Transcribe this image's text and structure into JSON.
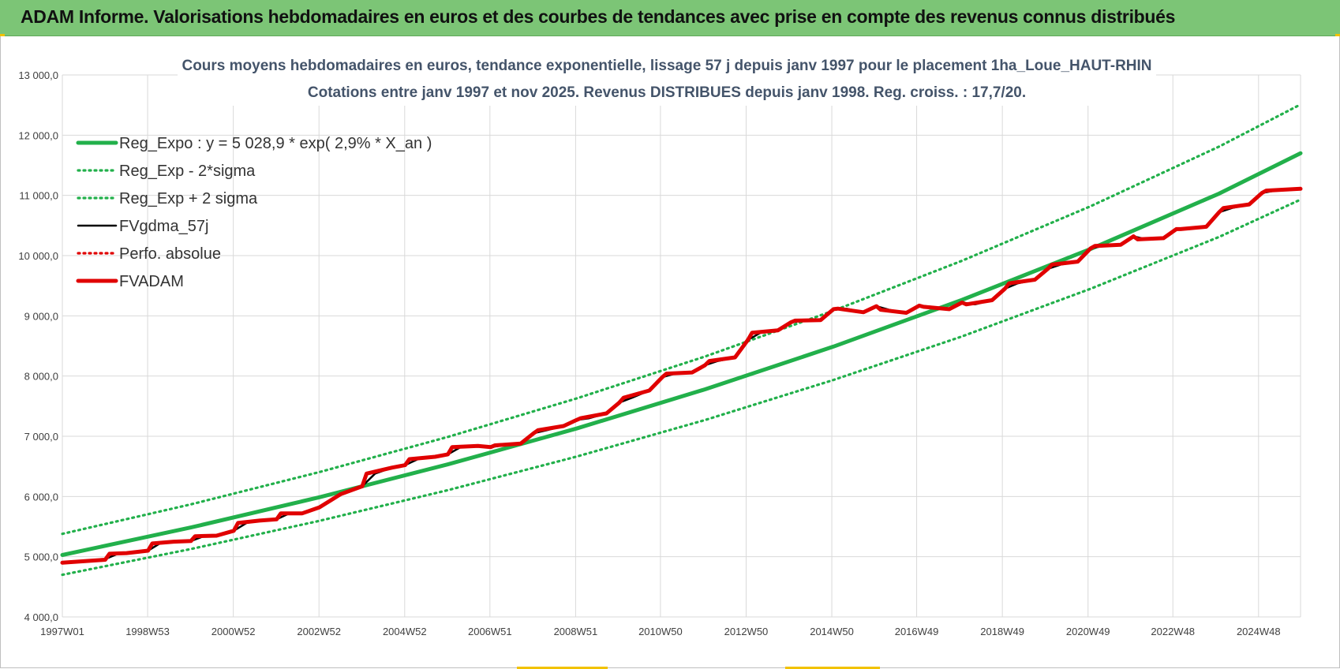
{
  "banner": {
    "title": "ADAM Informe. Valorisations hebdomadaires en euros et des courbes de tendances avec prise en compte des revenus connus distribués"
  },
  "colors": {
    "banner_bg": "#7cc576",
    "reg_expo": "#22b04b",
    "band": "#22b04b",
    "fvgdma": "#000000",
    "perfo": "#e00000",
    "fvadam": "#e00000",
    "grid": "#d9d9d9"
  },
  "chart_data": {
    "type": "line",
    "title_lines": [
      "Cours moyens hebdomadaires en euros, tendance exponentielle, lissage 57 j depuis janv 1997  pour le placement 1ha_Loue_HAUT-RHIN",
      "Cotations entre janv 1997 et nov 2025. Revenus  DISTRIBUES depuis janv 1998.  Reg. croiss. : 17,7/20."
    ],
    "x_range": [
      1997.0,
      2025.9
    ],
    "x_ticks": [
      {
        "x": 1997.0,
        "label": "1997W01"
      },
      {
        "x": 1998.99,
        "label": "1998W53"
      },
      {
        "x": 2000.99,
        "label": "2000W52"
      },
      {
        "x": 2002.99,
        "label": "2002W52"
      },
      {
        "x": 2004.99,
        "label": "2004W52"
      },
      {
        "x": 2006.98,
        "label": "2006W51"
      },
      {
        "x": 2008.98,
        "label": "2008W51"
      },
      {
        "x": 2010.96,
        "label": "2010W50"
      },
      {
        "x": 2012.96,
        "label": "2012W50"
      },
      {
        "x": 2014.96,
        "label": "2014W50"
      },
      {
        "x": 2016.94,
        "label": "2016W49"
      },
      {
        "x": 2018.94,
        "label": "2018W49"
      },
      {
        "x": 2020.94,
        "label": "2020W49"
      },
      {
        "x": 2022.92,
        "label": "2022W48"
      },
      {
        "x": 2024.92,
        "label": "2024W48"
      }
    ],
    "y_range": [
      4000,
      13000
    ],
    "y_ticks": [
      {
        "y": 4000,
        "label": "4 000,0"
      },
      {
        "y": 5000,
        "label": "5 000,0"
      },
      {
        "y": 6000,
        "label": "6 000,0"
      },
      {
        "y": 7000,
        "label": "7 000,0"
      },
      {
        "y": 8000,
        "label": "8 000,0"
      },
      {
        "y": 9000,
        "label": "9 000,0"
      },
      {
        "y": 10000,
        "label": "10 000,0"
      },
      {
        "y": 11000,
        "label": "11 000,0"
      },
      {
        "y": 12000,
        "label": "12 000,0"
      },
      {
        "y": 13000,
        "label": "13 000,0"
      }
    ],
    "grid": true,
    "legend_position": "top-left",
    "series": [
      {
        "name": "Reg_Expo : y = 5 028,9 * exp( 2,9% *  X_an )",
        "style": "solid-thick",
        "color": "#22b04b",
        "x": [
          1997.0,
          2000.0,
          2003.0,
          2006.0,
          2009.0,
          2012.0,
          2015.0,
          2018.0,
          2021.0,
          2024.0,
          2025.9
        ],
        "y": [
          5028.9,
          5486,
          5987,
          6533,
          7128,
          7780,
          8490,
          9265,
          10110,
          11030,
          11700
        ]
      },
      {
        "name": "Reg_Exp - 2*sigma",
        "style": "dotted",
        "color": "#22b04b",
        "x": [
          1997.0,
          2000.0,
          2003.0,
          2006.0,
          2009.0,
          2012.0,
          2015.0,
          2018.0,
          2021.0,
          2024.0,
          2025.9
        ],
        "y": [
          4700,
          5128,
          5595,
          6105,
          6662,
          7270,
          7935,
          8658,
          9450,
          10310,
          10930
        ]
      },
      {
        "name": "Reg_Exp + 2 sigma",
        "style": "dotted",
        "color": "#22b04b",
        "x": [
          1997.0,
          2000.0,
          2003.0,
          2006.0,
          2009.0,
          2012.0,
          2015.0,
          2018.0,
          2021.0,
          2024.0,
          2025.9
        ],
        "y": [
          5380,
          5870,
          6405,
          6990,
          7628,
          8325,
          9085,
          9915,
          10820,
          11810,
          12510
        ]
      },
      {
        "name": "FVgdma_57j",
        "style": "solid",
        "color": "#000000",
        "x": [
          1997.0,
          1997.5,
          1998.0,
          1998.3,
          1998.5,
          1999.0,
          1999.3,
          1999.6,
          2000.0,
          2000.3,
          2000.6,
          2001.0,
          2001.3,
          2001.6,
          2002.0,
          2002.3,
          2002.6,
          2003.0,
          2003.5,
          2004.0,
          2004.3,
          2004.7,
          2005.0,
          2005.3,
          2005.7,
          2006.0,
          2006.3,
          2006.7,
          2007.0,
          2007.3,
          2007.7,
          2008.0,
          2008.3,
          2008.7,
          2009.0,
          2009.3,
          2009.7,
          2010.0,
          2010.3,
          2010.7,
          2011.0,
          2011.3,
          2011.7,
          2012.0,
          2012.3,
          2012.7,
          2013.0,
          2013.3,
          2013.7,
          2014.0,
          2014.3,
          2014.7,
          2015.0,
          2015.3,
          2015.7,
          2016.0,
          2016.3,
          2016.7,
          2017.0,
          2017.3,
          2017.7,
          2018.0,
          2018.3,
          2018.7,
          2019.0,
          2019.3,
          2019.7,
          2020.0,
          2020.3,
          2020.7,
          2021.0,
          2021.3,
          2021.7,
          2022.0,
          2022.3,
          2022.7,
          2023.0,
          2023.3,
          2023.7,
          2024.0,
          2024.3,
          2024.7,
          2025.0,
          2025.3,
          2025.9
        ],
        "y": [
          4900,
          4925,
          4960,
          5050,
          5060,
          5100,
          5230,
          5250,
          5260,
          5340,
          5350,
          5430,
          5560,
          5600,
          5620,
          5720,
          5720,
          5820,
          6040,
          6170,
          6380,
          6480,
          6520,
          6620,
          6660,
          6700,
          6820,
          6830,
          6820,
          6850,
          6880,
          7050,
          7100,
          7170,
          7270,
          7300,
          7380,
          7560,
          7640,
          7760,
          7980,
          8040,
          8060,
          8180,
          8250,
          8310,
          8600,
          8720,
          8760,
          8890,
          8920,
          8930,
          9110,
          9120,
          9060,
          9160,
          9100,
          9050,
          9170,
          9150,
          9110,
          9220,
          9190,
          9260,
          9450,
          9540,
          9600,
          9780,
          9850,
          9900,
          10120,
          10160,
          10180,
          10320,
          10270,
          10290,
          10440,
          10440,
          10480,
          10720,
          10790,
          10850,
          11040,
          11080,
          11110
        ]
      },
      {
        "name": "Perfo. absolue",
        "style": "dotted",
        "color": "#e00000",
        "x": [],
        "y": []
      },
      {
        "name": "FVADAM",
        "style": "solid-thick",
        "color": "#e00000",
        "x": [
          1997.0,
          1997.5,
          1998.0,
          1998.1,
          1998.5,
          1999.0,
          1999.1,
          1999.6,
          2000.0,
          2000.1,
          2000.6,
          2001.0,
          2001.1,
          2001.6,
          2002.0,
          2002.1,
          2002.6,
          2003.0,
          2003.5,
          2004.0,
          2004.1,
          2004.7,
          2005.0,
          2005.1,
          2005.7,
          2006.0,
          2006.1,
          2006.7,
          2007.0,
          2007.1,
          2007.7,
          2008.0,
          2008.1,
          2008.7,
          2009.0,
          2009.1,
          2009.7,
          2010.0,
          2010.1,
          2010.7,
          2011.0,
          2011.1,
          2011.7,
          2012.0,
          2012.1,
          2012.7,
          2013.0,
          2013.1,
          2013.7,
          2014.0,
          2014.1,
          2014.7,
          2015.0,
          2015.1,
          2015.7,
          2016.0,
          2016.1,
          2016.7,
          2017.0,
          2017.1,
          2017.7,
          2018.0,
          2018.1,
          2018.7,
          2019.0,
          2019.1,
          2019.7,
          2020.0,
          2020.1,
          2020.7,
          2021.0,
          2021.1,
          2021.7,
          2022.0,
          2022.1,
          2022.7,
          2023.0,
          2023.1,
          2023.7,
          2024.0,
          2024.1,
          2024.7,
          2025.0,
          2025.1,
          2025.9
        ],
        "y": [
          4900,
          4925,
          4950,
          5050,
          5060,
          5100,
          5220,
          5250,
          5260,
          5340,
          5350,
          5430,
          5560,
          5600,
          5620,
          5720,
          5720,
          5820,
          6040,
          6170,
          6380,
          6480,
          6520,
          6620,
          6660,
          6700,
          6820,
          6840,
          6820,
          6850,
          6880,
          7050,
          7100,
          7170,
          7270,
          7300,
          7380,
          7560,
          7640,
          7760,
          7980,
          8040,
          8060,
          8180,
          8250,
          8310,
          8600,
          8720,
          8760,
          8890,
          8920,
          8930,
          9110,
          9120,
          9060,
          9160,
          9100,
          9050,
          9170,
          9150,
          9110,
          9220,
          9190,
          9260,
          9450,
          9540,
          9600,
          9780,
          9850,
          9900,
          10120,
          10160,
          10180,
          10320,
          10270,
          10290,
          10440,
          10440,
          10480,
          10720,
          10790,
          10850,
          11040,
          11080,
          11110
        ]
      }
    ]
  }
}
